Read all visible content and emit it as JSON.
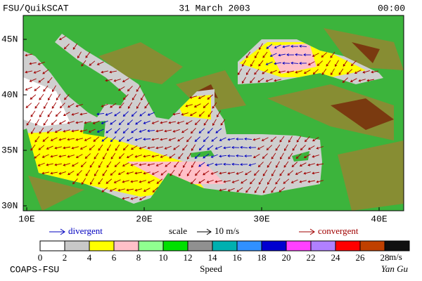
{
  "header": {
    "source": "FSU/QuikSCAT",
    "date": "31 March 2003",
    "time": "00:00"
  },
  "map": {
    "lat_labels": [
      "45N",
      "40N",
      "35N",
      "30N"
    ],
    "lon_labels": [
      "10E",
      "20E",
      "30E",
      "40E"
    ]
  },
  "legend": {
    "divergent": "divergent",
    "scale": "scale",
    "scale_value": "10 m/s",
    "convergent": "convergent"
  },
  "colorbar": {
    "colors": [
      "#ffffff",
      "#c8c8c8",
      "#ffff00",
      "#ffc0c8",
      "#90ff90",
      "#00e000",
      "#909090",
      "#00b0b0",
      "#3090ff",
      "#0000d0",
      "#ff40ff",
      "#b080ff",
      "#ff0000",
      "#c04000",
      "#101010"
    ],
    "ticks": [
      0,
      2,
      4,
      6,
      8,
      10,
      12,
      14,
      16,
      18,
      20,
      22,
      24,
      26,
      28
    ],
    "unit": "m/s",
    "title": "Speed"
  },
  "footer": {
    "institution": "COAPS-FSU",
    "author": "Yan Gu"
  }
}
